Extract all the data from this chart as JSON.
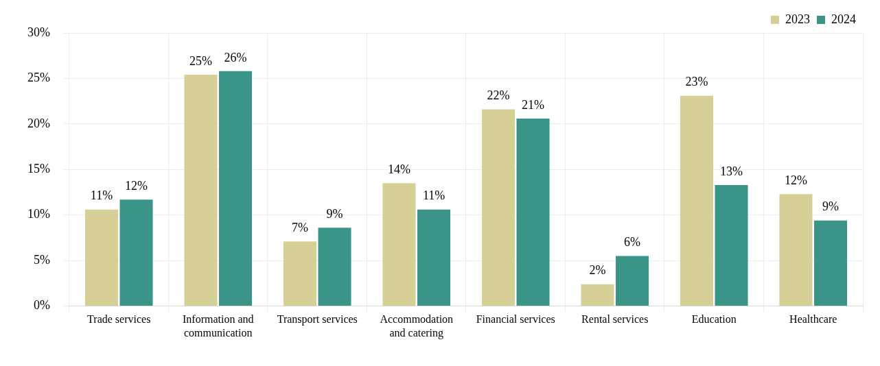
{
  "chart_data": {
    "type": "bar",
    "categories": [
      "Trade services",
      "Information and communication",
      "Transport services",
      "Accommodation and catering",
      "Financial services",
      "Rental services",
      "Education",
      "Healthcare"
    ],
    "series": [
      {
        "name": "2023",
        "color": "#d6cf96",
        "values": [
          10.6,
          25.4,
          7.1,
          13.5,
          21.6,
          2.4,
          23.1,
          12.3
        ],
        "value_labels": [
          "11%",
          "25%",
          "7%",
          "14%",
          "22%",
          "2%",
          "23%",
          "12%"
        ]
      },
      {
        "name": "2024",
        "color": "#3a9487",
        "values": [
          11.7,
          25.8,
          8.6,
          10.6,
          20.6,
          5.5,
          13.3,
          9.4
        ],
        "value_labels": [
          "12%",
          "26%",
          "9%",
          "11%",
          "21%",
          "6%",
          "13%",
          "9%"
        ]
      }
    ],
    "ylim": [
      0,
      30
    ],
    "yticks": [
      {
        "value": 0,
        "label": "0%"
      },
      {
        "value": 5,
        "label": "5%"
      },
      {
        "value": 10,
        "label": "10%"
      },
      {
        "value": 15,
        "label": "15%"
      },
      {
        "value": 20,
        "label": "20%"
      },
      {
        "value": 25,
        "label": "25%"
      },
      {
        "value": 30,
        "label": "30%"
      }
    ],
    "grid": true,
    "legend": "top right"
  }
}
